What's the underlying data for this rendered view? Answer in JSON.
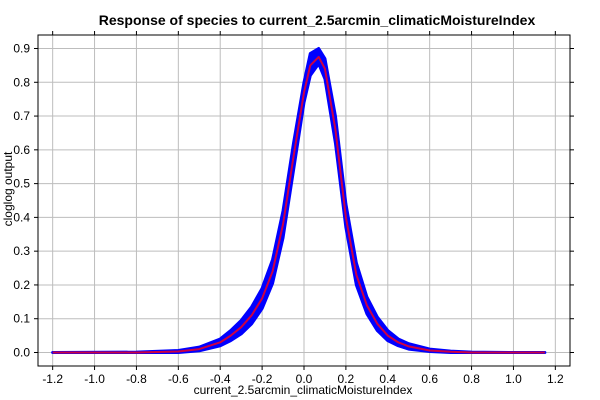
{
  "chart_data": {
    "type": "line",
    "title": "Response of species to current_2.5arcmin_climaticMoistureIndex",
    "xlabel": "current_2.5arcmin_climaticMoistureIndex",
    "ylabel": "cloglog output",
    "xlim": [
      -1.27,
      1.27
    ],
    "ylim": [
      -0.04,
      0.94
    ],
    "xticks": [
      -1.2,
      -1.0,
      -0.8,
      -0.6,
      -0.4,
      -0.2,
      0.0,
      0.2,
      0.4,
      0.6,
      0.8,
      1.0,
      1.2
    ],
    "xtick_labels": [
      "-1.2",
      "-1.0",
      "-0.8",
      "-0.6",
      "-0.4",
      "-0.2",
      "0.0",
      "0.2",
      "0.4",
      "0.6",
      "0.8",
      "1.0",
      "1.2"
    ],
    "yticks": [
      0.0,
      0.1,
      0.2,
      0.3,
      0.4,
      0.5,
      0.6,
      0.7,
      0.8,
      0.9
    ],
    "ytick_labels": [
      "0.0",
      "0.1",
      "0.2",
      "0.3",
      "0.4",
      "0.5",
      "0.6",
      "0.7",
      "0.8",
      "0.9"
    ],
    "grid": true,
    "x": [
      -1.2,
      -0.8,
      -0.6,
      -0.5,
      -0.4,
      -0.35,
      -0.3,
      -0.25,
      -0.2,
      -0.15,
      -0.1,
      -0.05,
      0.0,
      0.03,
      0.07,
      0.1,
      0.15,
      0.2,
      0.25,
      0.3,
      0.35,
      0.4,
      0.45,
      0.5,
      0.6,
      0.7,
      0.8,
      1.0,
      1.15
    ],
    "series": [
      {
        "values": [
          0.0,
          0.0,
          0.003,
          0.01,
          0.03,
          0.05,
          0.075,
          0.11,
          0.16,
          0.24,
          0.38,
          0.58,
          0.77,
          0.85,
          0.875,
          0.84,
          0.66,
          0.4,
          0.23,
          0.14,
          0.085,
          0.05,
          0.03,
          0.018,
          0.006,
          0.002,
          0.0,
          0.0,
          0.0
        ],
        "color": "#cc0044",
        "band_color": "#0000ff",
        "band_lower": [
          0.0,
          0.0,
          0.0,
          0.005,
          0.02,
          0.035,
          0.055,
          0.085,
          0.13,
          0.205,
          0.34,
          0.54,
          0.74,
          0.82,
          0.855,
          0.81,
          0.62,
          0.37,
          0.2,
          0.115,
          0.065,
          0.035,
          0.02,
          0.01,
          0.003,
          0.0,
          0.0,
          0.0,
          0.0
        ],
        "band_upper": [
          0.0,
          0.001,
          0.006,
          0.016,
          0.04,
          0.065,
          0.095,
          0.135,
          0.19,
          0.275,
          0.42,
          0.62,
          0.8,
          0.885,
          0.9,
          0.87,
          0.7,
          0.44,
          0.265,
          0.165,
          0.105,
          0.065,
          0.04,
          0.026,
          0.01,
          0.004,
          0.001,
          0.0,
          0.0
        ]
      }
    ]
  }
}
